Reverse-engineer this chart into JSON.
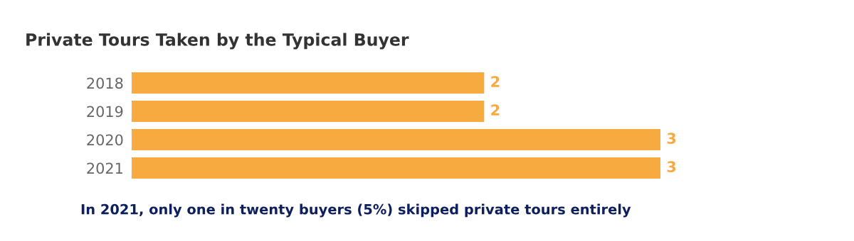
{
  "chart_data": {
    "type": "bar",
    "orientation": "horizontal",
    "title": "Private Tours Taken by the Typical Buyer",
    "categories": [
      "2018",
      "2019",
      "2020",
      "2021"
    ],
    "values": [
      2,
      2,
      3,
      3
    ],
    "color": "#f6aa3f",
    "data_labels": true,
    "tick_labels": "y",
    "grid": false,
    "legend": false,
    "annotations": [
      "In 2021, only one in twenty buyers (5%) skipped private tours entirely"
    ]
  }
}
